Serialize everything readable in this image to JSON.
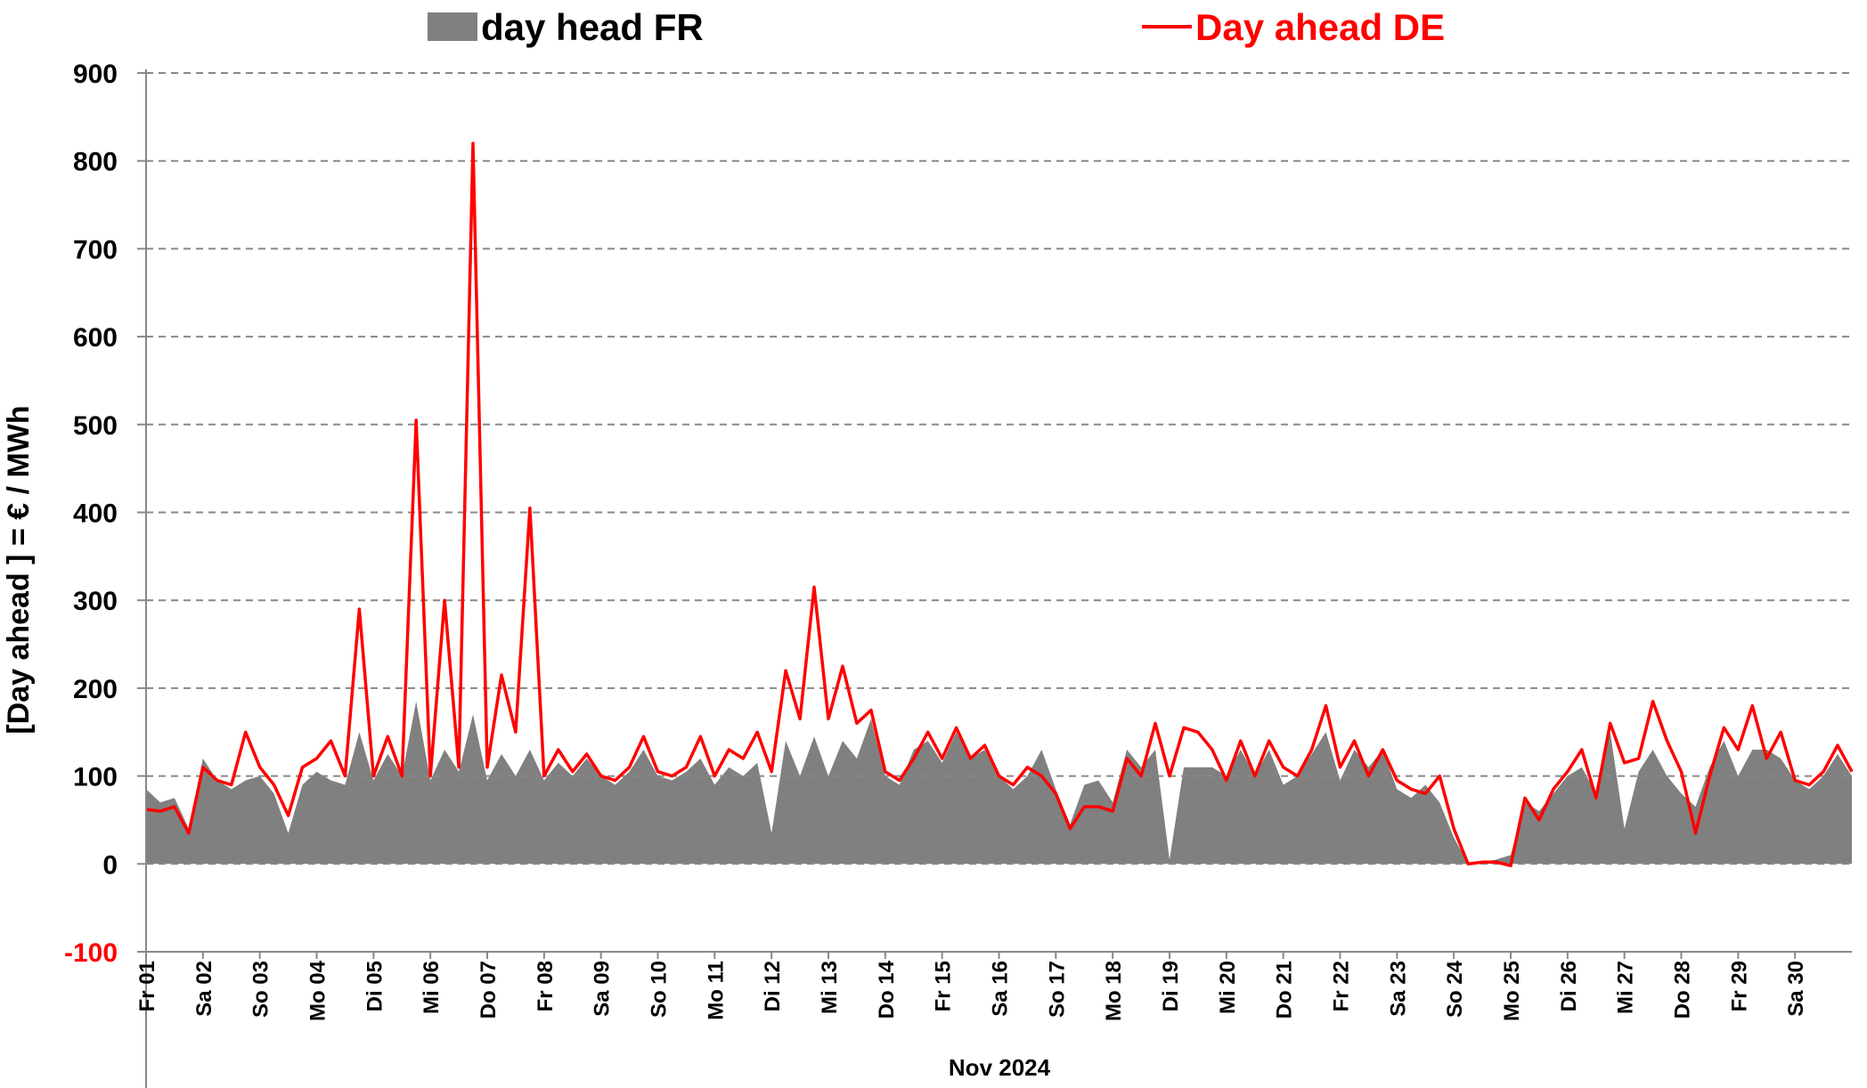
{
  "chart_data": {
    "type": "line",
    "y_label": "[Day ahead ]  = € / MWh",
    "x_label": "Nov 2024",
    "xlim": [
      0,
      30
    ],
    "ylim": [
      -100,
      900
    ],
    "yticks": [
      -100,
      0,
      100,
      200,
      300,
      400,
      500,
      600,
      700,
      800,
      900
    ],
    "negative_tick_color": "#ff0000",
    "grid": true,
    "xticks": [
      {
        "value": 0,
        "label": "Fr 01"
      },
      {
        "value": 1,
        "label": "Sa 02"
      },
      {
        "value": 2,
        "label": "So 03"
      },
      {
        "value": 3,
        "label": "Mo 04"
      },
      {
        "value": 4,
        "label": "Di 05"
      },
      {
        "value": 5,
        "label": "Mi 06"
      },
      {
        "value": 6,
        "label": "Do 07"
      },
      {
        "value": 7,
        "label": "Fr 08"
      },
      {
        "value": 8,
        "label": "Sa 09"
      },
      {
        "value": 9,
        "label": "So 10"
      },
      {
        "value": 10,
        "label": "Mo 11"
      },
      {
        "value": 11,
        "label": "Di 12"
      },
      {
        "value": 12,
        "label": "Mi 13"
      },
      {
        "value": 13,
        "label": "Do 14"
      },
      {
        "value": 14,
        "label": "Fr 15"
      },
      {
        "value": 15,
        "label": "Sa 16"
      },
      {
        "value": 16,
        "label": "So 17"
      },
      {
        "value": 17,
        "label": "Mo 18"
      },
      {
        "value": 18,
        "label": "Di 19"
      },
      {
        "value": 19,
        "label": "Mi 20"
      },
      {
        "value": 20,
        "label": "Do 21"
      },
      {
        "value": 21,
        "label": "Fr 22"
      },
      {
        "value": 22,
        "label": "Sa 23"
      },
      {
        "value": 23,
        "label": "So 24"
      },
      {
        "value": 24,
        "label": "Mo 25"
      },
      {
        "value": 25,
        "label": "Di 26"
      },
      {
        "value": 26,
        "label": "Mi 27"
      },
      {
        "value": 27,
        "label": "Do 28"
      },
      {
        "value": 28,
        "label": "Fr 29"
      },
      {
        "value": 29,
        "label": "Sa 30"
      }
    ],
    "x": [
      0,
      0.25,
      0.5,
      0.75,
      1,
      1.25,
      1.5,
      1.75,
      2,
      2.25,
      2.5,
      2.75,
      3,
      3.25,
      3.5,
      3.75,
      4,
      4.25,
      4.5,
      4.75,
      5,
      5.25,
      5.5,
      5.75,
      6,
      6.25,
      6.5,
      6.75,
      7,
      7.25,
      7.5,
      7.75,
      8,
      8.25,
      8.5,
      8.75,
      9,
      9.25,
      9.5,
      9.75,
      10,
      10.25,
      10.5,
      10.75,
      11,
      11.25,
      11.5,
      11.75,
      12,
      12.25,
      12.5,
      12.75,
      13,
      13.25,
      13.5,
      13.75,
      14,
      14.25,
      14.5,
      14.75,
      15,
      15.25,
      15.5,
      15.75,
      16,
      16.25,
      16.5,
      16.75,
      17,
      17.25,
      17.5,
      17.75,
      18,
      18.25,
      18.5,
      18.75,
      19,
      19.25,
      19.5,
      19.75,
      20,
      20.25,
      20.5,
      20.75,
      21,
      21.25,
      21.5,
      21.75,
      22,
      22.25,
      22.5,
      22.75,
      23,
      23.25,
      23.5,
      23.75,
      24,
      24.25,
      24.5,
      24.75,
      25,
      25.25,
      25.5,
      25.75,
      26,
      26.25,
      26.5,
      26.75,
      27,
      27.25,
      27.5,
      27.75,
      28,
      28.25,
      28.5,
      28.75,
      29,
      29.25,
      29.5,
      29.75,
      30
    ],
    "series": [
      {
        "name": "day head FR",
        "kind": "area",
        "color": "#808080",
        "values": [
          85,
          70,
          75,
          40,
          120,
          95,
          85,
          95,
          100,
          80,
          35,
          90,
          105,
          95,
          90,
          150,
          95,
          125,
          100,
          185,
          95,
          130,
          105,
          170,
          95,
          125,
          100,
          130,
          95,
          115,
          100,
          120,
          100,
          90,
          105,
          130,
          100,
          95,
          105,
          120,
          90,
          110,
          100,
          115,
          35,
          140,
          100,
          145,
          100,
          140,
          120,
          165,
          100,
          90,
          130,
          140,
          115,
          150,
          120,
          130,
          100,
          85,
          100,
          130,
          85,
          45,
          90,
          95,
          70,
          130,
          110,
          130,
          5,
          110,
          110,
          110,
          100,
          130,
          100,
          130,
          90,
          100,
          125,
          150,
          95,
          130,
          110,
          130,
          85,
          75,
          90,
          70,
          30,
          0,
          2,
          5,
          10,
          70,
          60,
          80,
          100,
          110,
          80,
          150,
          40,
          105,
          130,
          100,
          80,
          65,
          110,
          140,
          100,
          130,
          130,
          120,
          95,
          85,
          100,
          125,
          100
        ]
      },
      {
        "name": "Day ahead DE",
        "kind": "line",
        "color": "#ff0000",
        "values": [
          62,
          60,
          65,
          35,
          110,
          95,
          90,
          150,
          110,
          90,
          55,
          110,
          120,
          140,
          100,
          290,
          100,
          145,
          100,
          505,
          100,
          300,
          110,
          820,
          110,
          215,
          150,
          405,
          100,
          130,
          105,
          125,
          100,
          95,
          110,
          145,
          105,
          100,
          110,
          145,
          100,
          130,
          120,
          150,
          105,
          220,
          165,
          315,
          165,
          225,
          160,
          175,
          105,
          95,
          120,
          150,
          120,
          155,
          120,
          135,
          100,
          90,
          110,
          100,
          80,
          40,
          65,
          65,
          60,
          120,
          100,
          160,
          100,
          155,
          150,
          130,
          95,
          140,
          100,
          140,
          110,
          100,
          130,
          180,
          110,
          140,
          100,
          130,
          95,
          85,
          80,
          100,
          40,
          0,
          2,
          2,
          -2,
          75,
          50,
          85,
          105,
          130,
          75,
          160,
          115,
          120,
          185,
          140,
          105,
          35,
          100,
          155,
          130,
          180,
          120,
          150,
          95,
          90,
          105,
          135,
          105
        ]
      }
    ]
  }
}
